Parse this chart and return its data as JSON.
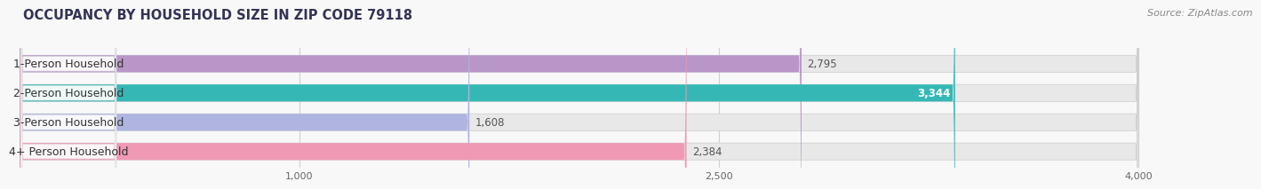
{
  "title": "OCCUPANCY BY HOUSEHOLD SIZE IN ZIP CODE 79118",
  "source": "Source: ZipAtlas.com",
  "categories": [
    "1-Person Household",
    "2-Person Household",
    "3-Person Household",
    "4+ Person Household"
  ],
  "values": [
    2795,
    3344,
    1608,
    2384
  ],
  "bar_colors": [
    "#b896c8",
    "#35b8b5",
    "#b0b4e0",
    "#f099b5"
  ],
  "bar_label_colors": [
    "#555555",
    "#ffffff",
    "#555555",
    "#555555"
  ],
  "value_label_inside": [
    false,
    true,
    false,
    false
  ],
  "xlim": [
    0,
    4400
  ],
  "data_max": 4000,
  "xticks": [
    1000,
    2500,
    4000
  ],
  "background_color": "#f8f8f8",
  "bar_bg_color": "#e8e8e8",
  "title_color": "#333355",
  "title_fontsize": 10.5,
  "source_fontsize": 8,
  "label_fontsize": 9,
  "value_fontsize": 8.5,
  "bar_height": 0.58
}
